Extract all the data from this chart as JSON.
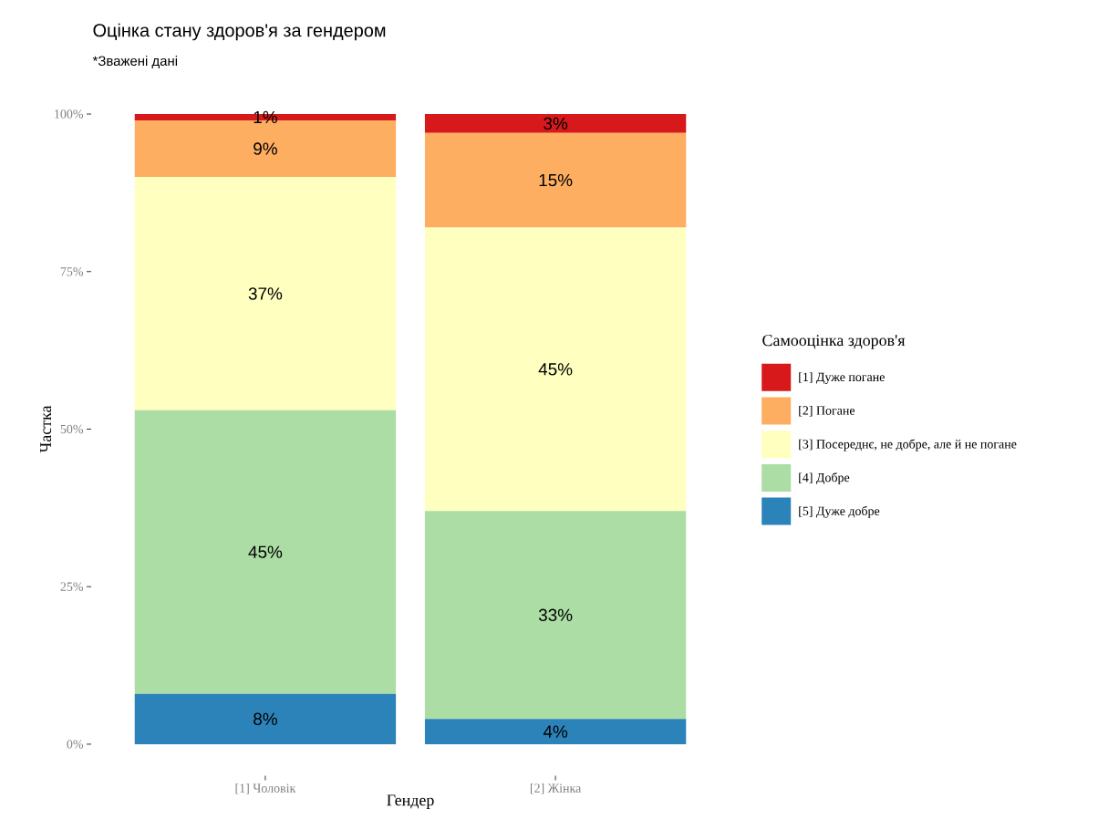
{
  "chart_data": {
    "type": "bar",
    "title": "Оцінка стану здоров'я за гендером",
    "subtitle": "*Зважені дані",
    "xlabel": "Гендер",
    "ylabel": "Частка",
    "legend_title": "Самооцінка здоров'я",
    "legend": "right",
    "stacked": true,
    "categories": [
      "[1] Чоловік",
      "[2] Жінка"
    ],
    "ylim": [
      0,
      100
    ],
    "yticks": [
      {
        "value": 0,
        "label": "0%"
      },
      {
        "value": 25,
        "label": "25%"
      },
      {
        "value": 50,
        "label": "50%"
      },
      {
        "value": 75,
        "label": "75%"
      },
      {
        "value": 100,
        "label": "100%"
      }
    ],
    "series": [
      {
        "name": "[5] Дуже добре",
        "color": "#2b83ba",
        "values": [
          8,
          4
        ],
        "value_labels": [
          "8%",
          "4%"
        ]
      },
      {
        "name": "[4] Добре",
        "color": "#abdda4",
        "values": [
          45,
          33
        ],
        "value_labels": [
          "45%",
          "33%"
        ]
      },
      {
        "name": "[3] Посереднє, не добре, але й не погане",
        "color": "#ffffbf",
        "values": [
          37,
          45
        ],
        "value_labels": [
          "37%",
          "45%"
        ]
      },
      {
        "name": "[2] Погане",
        "color": "#fdae61",
        "values": [
          9,
          15
        ],
        "value_labels": [
          "9%",
          "15%"
        ]
      },
      {
        "name": "[1] Дуже погане",
        "color": "#d7191c",
        "values": [
          1,
          3
        ],
        "value_labels": [
          "1%",
          "3%"
        ]
      }
    ]
  }
}
